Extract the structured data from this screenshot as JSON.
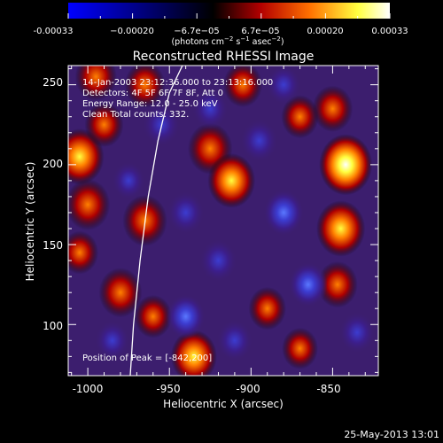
{
  "colorbar": {
    "ticks": [
      "-0.00033",
      "−0.00020",
      "−6.7e−05",
      "6.7e−05",
      "0.00020",
      "0.00033"
    ],
    "unit_main": "(photons cm",
    "unit_exp1": "−2",
    "unit_mid": " s",
    "unit_exp2": "−1",
    "unit_end": " asec",
    "unit_exp3": "−2",
    "unit_close": ")",
    "range": [
      -0.00033,
      0.00033
    ],
    "colors": [
      "#0000ff",
      "#000000",
      "#b40000",
      "#ff7000",
      "#ffff40",
      "#ffffff"
    ]
  },
  "chart_data": {
    "type": "heatmap",
    "title": "Reconstructed RHESSI Image",
    "xlabel": "Heliocentric X (arcsec)",
    "ylabel": "Heliocentric Y (arcsec)",
    "xlim": [
      -1012,
      -822
    ],
    "ylim": [
      68,
      262
    ],
    "xticks": [
      "-1000",
      "-950",
      "-900",
      "-850"
    ],
    "yticks": [
      "100",
      "150",
      "200",
      "250"
    ],
    "xtick_values": [
      -1000,
      -950,
      -900,
      -850
    ],
    "ytick_values": [
      100,
      150,
      200,
      250
    ],
    "annotations": [
      "14-Jan-2003 23:12:36.000 to 23:13:16.000",
      "Detectors: 4F 5F 6F 7F 8F, Att 0",
      "Energy Range: 12.0 - 25.0 keV",
      "Clean    Total counts: 332."
    ],
    "peak_label": "Position of Peak = [-842,200]",
    "peak": [
      -842,
      200
    ],
    "limb_color": "#ffffff",
    "blobs": [
      {
        "x": -842,
        "y": 200,
        "v": 1.0
      },
      {
        "x": -845,
        "y": 160,
        "v": 0.85
      },
      {
        "x": -847,
        "y": 125,
        "v": 0.55
      },
      {
        "x": -850,
        "y": 235,
        "v": 0.55
      },
      {
        "x": -1005,
        "y": 205,
        "v": 0.85
      },
      {
        "x": -1000,
        "y": 175,
        "v": 0.7
      },
      {
        "x": -965,
        "y": 165,
        "v": 0.7
      },
      {
        "x": -980,
        "y": 120,
        "v": 0.65
      },
      {
        "x": -995,
        "y": 255,
        "v": 0.6
      },
      {
        "x": -965,
        "y": 250,
        "v": 0.55
      },
      {
        "x": -925,
        "y": 210,
        "v": 0.7
      },
      {
        "x": -912,
        "y": 190,
        "v": 0.8
      },
      {
        "x": -935,
        "y": 80,
        "v": 0.75
      },
      {
        "x": -905,
        "y": 250,
        "v": 0.5
      },
      {
        "x": -870,
        "y": 230,
        "v": 0.45
      },
      {
        "x": -890,
        "y": 110,
        "v": 0.45
      },
      {
        "x": -870,
        "y": 85,
        "v": 0.4
      },
      {
        "x": -960,
        "y": 105,
        "v": 0.45
      },
      {
        "x": -990,
        "y": 225,
        "v": 0.5
      },
      {
        "x": -1005,
        "y": 145,
        "v": 0.45
      },
      {
        "x": -940,
        "y": 105,
        "v": -0.5
      },
      {
        "x": -920,
        "y": 140,
        "v": -0.45
      },
      {
        "x": -940,
        "y": 170,
        "v": -0.45
      },
      {
        "x": -880,
        "y": 170,
        "v": -0.55
      },
      {
        "x": -895,
        "y": 215,
        "v": -0.45
      },
      {
        "x": -925,
        "y": 235,
        "v": -0.4
      },
      {
        "x": -955,
        "y": 225,
        "v": -0.45
      },
      {
        "x": -865,
        "y": 125,
        "v": -0.5
      },
      {
        "x": -910,
        "y": 90,
        "v": -0.4
      },
      {
        "x": -880,
        "y": 250,
        "v": -0.35
      },
      {
        "x": -835,
        "y": 95,
        "v": -0.4
      },
      {
        "x": -985,
        "y": 90,
        "v": -0.35
      },
      {
        "x": -975,
        "y": 190,
        "v": -0.3
      }
    ]
  },
  "footer": {
    "date": "25-May-2013 13:01"
  }
}
